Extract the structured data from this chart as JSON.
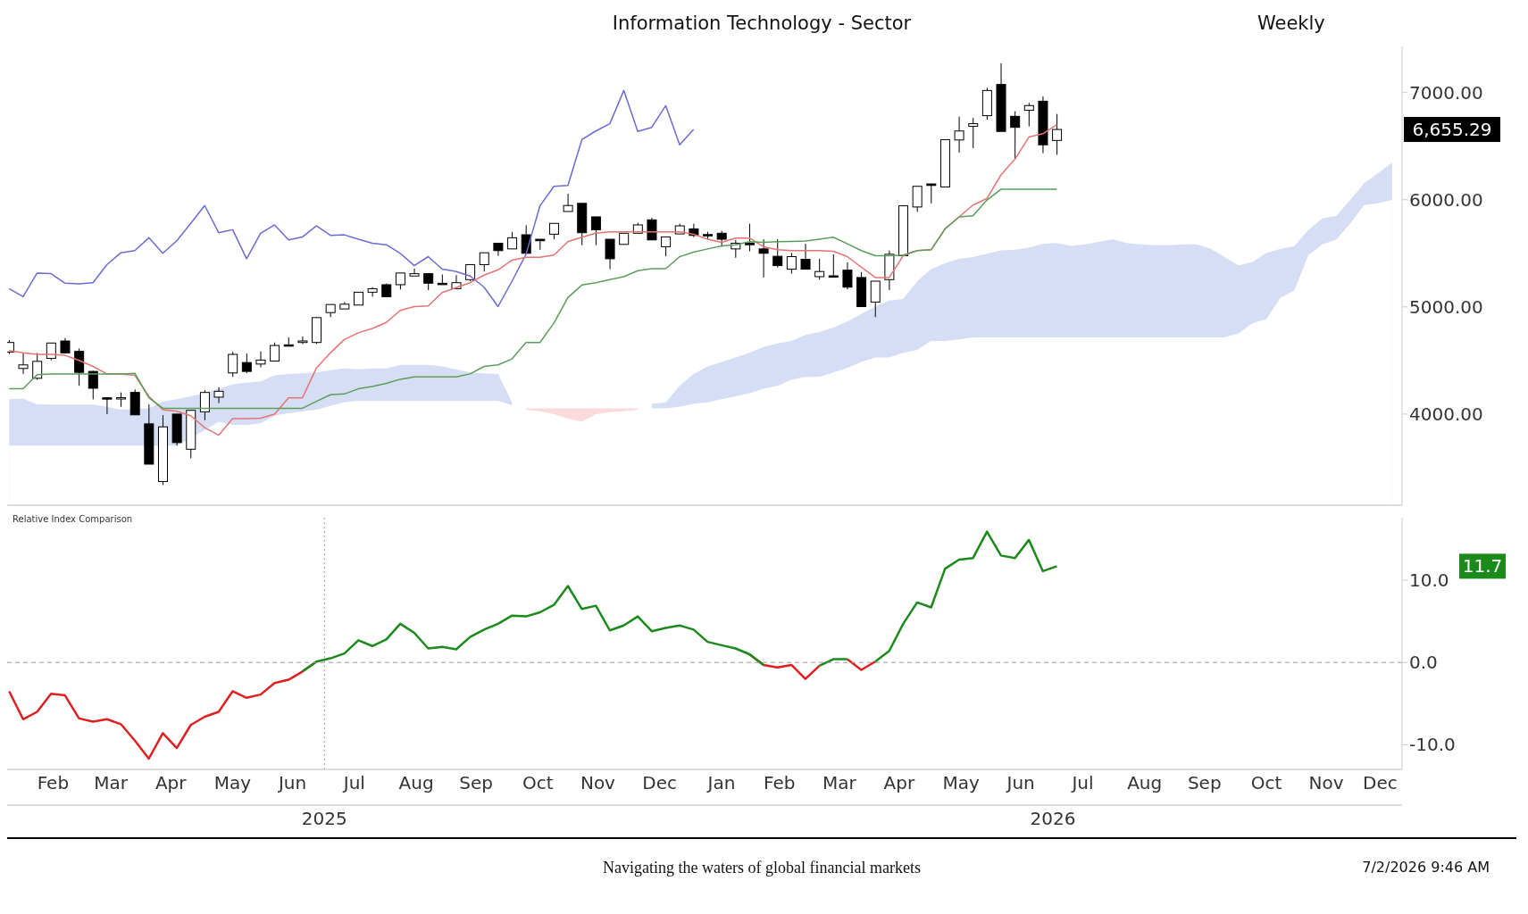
{
  "chart_data": [
    {
      "type": "candlestick",
      "title": "Information Technology - Sector",
      "subtitle": "Weekly",
      "x": [
        "2025-01-24",
        "2025-01-31",
        "2025-02-07",
        "2025-02-14",
        "2025-02-21",
        "2025-02-28",
        "2025-03-07",
        "2025-03-14",
        "2025-03-21",
        "2025-03-28",
        "2025-04-04",
        "2025-04-11",
        "2025-04-18",
        "2025-04-25",
        "2025-05-02",
        "2025-05-09",
        "2025-05-16",
        "2025-05-23",
        "2025-05-30",
        "2025-06-06",
        "2025-06-13",
        "2025-06-20",
        "2025-06-27",
        "2025-07-04",
        "2025-07-11",
        "2025-07-18",
        "2025-07-25",
        "2025-08-01",
        "2025-08-08",
        "2025-08-15",
        "2025-08-22",
        "2025-08-29",
        "2025-09-05",
        "2025-09-12",
        "2025-09-19",
        "2025-09-26",
        "2025-10-03",
        "2025-10-10",
        "2025-10-17",
        "2025-10-24",
        "2025-10-31",
        "2025-11-07",
        "2025-11-14",
        "2025-11-21",
        "2025-11-28",
        "2025-12-05",
        "2025-12-12",
        "2025-12-19",
        "2025-12-26",
        "2026-01-02",
        "2026-01-09",
        "2026-01-16",
        "2026-01-23",
        "2026-01-30",
        "2026-02-06",
        "2026-02-13",
        "2026-02-20",
        "2026-02-27",
        "2026-03-06",
        "2026-03-13",
        "2026-03-20",
        "2026-03-27",
        "2026-04-03",
        "2026-04-10",
        "2026-04-17",
        "2026-04-24",
        "2026-05-01",
        "2026-05-08",
        "2026-05-15",
        "2026-05-22",
        "2026-05-29",
        "2026-06-05",
        "2026-06-12",
        "2026-06-19",
        "2026-06-26",
        "2026-07-03"
      ],
      "ohlc": [
        [
          4579,
          4690,
          4560,
          4668
        ],
        [
          4426,
          4565,
          4375,
          4459
        ],
        [
          4334,
          4571,
          4319,
          4492
        ],
        [
          4520,
          4665,
          4501,
          4663
        ],
        [
          4682,
          4710,
          4571,
          4571
        ],
        [
          4585,
          4612,
          4264,
          4389
        ],
        [
          4398,
          4405,
          4138,
          4241
        ],
        [
          4152,
          4158,
          4000,
          4150
        ],
        [
          4150,
          4202,
          4068,
          4153
        ],
        [
          4202,
          4230,
          3993,
          3993
        ],
        [
          3909,
          4091,
          3533,
          3533
        ],
        [
          3371,
          3990,
          3338,
          3881
        ],
        [
          4000,
          4000,
          3706,
          3734
        ],
        [
          3672,
          4040,
          3588,
          4035
        ],
        [
          4021,
          4222,
          3943,
          4202
        ],
        [
          4158,
          4250,
          4102,
          4213
        ],
        [
          4384,
          4579,
          4347,
          4557
        ],
        [
          4481,
          4565,
          4381,
          4398
        ],
        [
          4467,
          4585,
          4437,
          4504
        ],
        [
          4495,
          4668,
          4495,
          4640
        ],
        [
          4646,
          4716,
          4633,
          4635
        ],
        [
          4668,
          4724,
          4654,
          4682
        ],
        [
          4668,
          4905,
          4654,
          4900
        ],
        [
          4947,
          5022,
          4905,
          5022
        ],
        [
          4981,
          5045,
          4981,
          5025
        ],
        [
          5017,
          5140,
          5017,
          5137
        ],
        [
          5137,
          5184,
          5095,
          5170
        ],
        [
          5207,
          5218,
          5095,
          5095
        ],
        [
          5207,
          5316,
          5162,
          5316
        ],
        [
          5288,
          5357,
          5288,
          5310
        ],
        [
          5310,
          5310,
          5157,
          5221
        ],
        [
          5220,
          5302,
          5212,
          5215
        ],
        [
          5170,
          5296,
          5170,
          5226
        ],
        [
          5254,
          5394,
          5240,
          5394
        ],
        [
          5394,
          5505,
          5330,
          5505
        ],
        [
          5594,
          5594,
          5477,
          5525
        ],
        [
          5541,
          5700,
          5541,
          5645
        ],
        [
          5673,
          5762,
          5500,
          5500
        ],
        [
          5631,
          5631,
          5533,
          5617
        ],
        [
          5678,
          5779,
          5631,
          5779
        ],
        [
          5890,
          6055,
          5890,
          5946
        ],
        [
          5966,
          5966,
          5575,
          5692
        ],
        [
          5840,
          5840,
          5575,
          5720
        ],
        [
          5631,
          5631,
          5352,
          5449
        ],
        [
          5583,
          5687,
          5583,
          5687
        ],
        [
          5687,
          5784,
          5687,
          5765
        ],
        [
          5812,
          5832,
          5625,
          5625
        ],
        [
          5561,
          5653,
          5472,
          5653
        ],
        [
          5681,
          5776,
          5681,
          5756
        ],
        [
          5728,
          5776,
          5650,
          5667
        ],
        [
          5675,
          5700,
          5631,
          5672
        ],
        [
          5687,
          5709,
          5561,
          5631
        ],
        [
          5541,
          5625,
          5458,
          5594
        ],
        [
          5594,
          5776,
          5519,
          5580
        ],
        [
          5541,
          5631,
          5274,
          5500
        ],
        [
          5472,
          5631,
          5366,
          5385
        ],
        [
          5352,
          5505,
          5310,
          5469
        ],
        [
          5444,
          5589,
          5352,
          5352
        ],
        [
          5282,
          5449,
          5254,
          5330
        ],
        [
          5290,
          5491,
          5274,
          5288
        ],
        [
          5343,
          5416,
          5162,
          5184
        ],
        [
          5274,
          5324,
          5003,
          5003
        ],
        [
          5045,
          5240,
          4905,
          5240
        ],
        [
          5254,
          5525,
          5157,
          5491
        ],
        [
          5477,
          5950,
          5477,
          5943
        ],
        [
          5932,
          6125,
          5887,
          6125
        ],
        [
          6147,
          6150,
          5966,
          6133
        ],
        [
          6119,
          6560,
          6119,
          6560
        ],
        [
          6557,
          6775,
          6440,
          6641
        ],
        [
          6684,
          6762,
          6481,
          6709
        ],
        [
          6784,
          7044,
          6747,
          7019
        ],
        [
          7075,
          7272,
          6637,
          6637
        ],
        [
          6778,
          6825,
          6372,
          6675
        ],
        [
          6834,
          6903,
          6684,
          6878
        ],
        [
          6919,
          6965,
          6434,
          6512
        ],
        [
          6553,
          6800,
          6419,
          6655.29
        ]
      ],
      "series": [
        {
          "type": "area",
          "color": "#d6def5",
          "x": [
            "2025-01-24",
            "2025-01-31",
            "2025-02-07",
            "2025-02-14",
            "2025-02-21",
            "2025-02-28",
            "2025-03-07",
            "2025-03-14",
            "2025-03-21",
            "2025-03-28",
            "2025-04-04",
            "2025-04-11",
            "2025-04-18",
            "2025-04-25",
            "2025-05-02",
            "2025-05-09",
            "2025-05-16",
            "2025-05-23",
            "2025-05-30",
            "2025-06-06",
            "2025-06-13",
            "2025-06-20",
            "2025-06-27",
            "2025-07-04",
            "2025-07-11",
            "2025-07-18",
            "2025-07-25",
            "2025-08-01",
            "2025-08-08",
            "2025-08-15",
            "2025-08-22",
            "2025-08-29",
            "2025-09-05",
            "2025-09-12",
            "2025-09-19",
            "2025-09-26",
            "2025-10-03"
          ],
          "values": [
            4138,
            4146,
            4091,
            4088,
            4088,
            4088,
            4088,
            4068,
            4041,
            null,
            4054,
            4119,
            4138,
            4166,
            4194,
            4236,
            4278,
            4292,
            4305,
            4361,
            4375,
            4381,
            4389,
            4409,
            4426,
            4417,
            4426,
            4426,
            4459,
            4459,
            4459,
            4445,
            4417,
            4389,
            4381,
            4375,
            4110
          ]
        },
        {
          "type": "area",
          "color": "#d6def5",
          "x": [
            "2025-12-12",
            "2025-12-19",
            "2025-12-26",
            "2026-01-02",
            "2026-01-09",
            "2026-01-16",
            "2026-01-23",
            "2026-01-30",
            "2026-02-06",
            "2026-02-13",
            "2026-02-20",
            "2026-02-27",
            "2026-03-06",
            "2026-03-13",
            "2026-03-20",
            "2026-03-27",
            "2026-04-03",
            "2026-04-10",
            "2026-04-17",
            "2026-04-24",
            "2026-05-01",
            "2026-05-08",
            "2026-05-15",
            "2026-05-22",
            "2026-05-29",
            "2026-06-05",
            "2026-06-12",
            "2026-06-19",
            "2026-06-26",
            "2026-07-03",
            "2026-07-10",
            "2026-07-17",
            "2026-07-24",
            "2026-07-31",
            "2026-08-07",
            "2026-08-14",
            "2026-08-21",
            "2026-08-28",
            "2026-09-04",
            "2026-09-11",
            "2026-09-18",
            "2026-09-25",
            "2026-10-02",
            "2026-10-09",
            "2026-10-16",
            "2026-10-23",
            "2026-10-30",
            "2026-11-06",
            "2026-11-13",
            "2026-11-20",
            "2026-11-27",
            "2026-12-04",
            "2026-12-11",
            "2026-12-18"
          ],
          "values": [
            4096,
            4110,
            4264,
            4375,
            4445,
            4487,
            4529,
            4571,
            4626,
            4660,
            4682,
            4738,
            4766,
            4808,
            4864,
            4933,
            5003,
            5059,
            5073,
            5240,
            5352,
            5408,
            5449,
            5465,
            5497,
            5528,
            5534,
            5553,
            5590,
            5597,
            5569,
            5584,
            5606,
            5631,
            5597,
            5584,
            5575,
            5575,
            5584,
            5584,
            5544,
            5465,
            5387,
            5419,
            5503,
            5541,
            5566,
            5716,
            5825,
            5847,
            5997,
            6153,
            6247,
            6347
          ]
        },
        {
          "type": "area",
          "color": "#fadada",
          "x": [
            "2025-10-10",
            "2025-10-17",
            "2025-10-24",
            "2025-10-31",
            "2025-11-07",
            "2025-11-14",
            "2025-11-21",
            "2025-11-28",
            "2025-12-05"
          ],
          "values": [
            4054,
            4054,
            4054,
            4054,
            4054,
            4054,
            4054,
            4054,
            4054
          ]
        },
        {
          "type": "area",
          "color": "#ffffff",
          "x": [
            "2025-01-24",
            "2025-01-31",
            "2025-02-07",
            "2025-02-14",
            "2025-02-21",
            "2025-02-28",
            "2025-03-07",
            "2025-03-14",
            "2025-03-21",
            "2025-03-28",
            "2025-04-04",
            "2025-04-11",
            "2025-04-18",
            "2025-04-25",
            "2025-05-02",
            "2025-05-09",
            "2025-05-16",
            "2025-05-23",
            "2025-05-30",
            "2025-06-06",
            "2025-06-13",
            "2025-06-20",
            "2025-06-27",
            "2025-07-04",
            "2025-07-11",
            "2025-07-18",
            "2025-07-25",
            "2025-08-01",
            "2025-08-08",
            "2025-08-15",
            "2025-08-22",
            "2025-08-29",
            "2025-09-05",
            "2025-09-12",
            "2025-09-19",
            "2025-09-26",
            "2025-10-03",
            "2025-10-10",
            "2025-10-17",
            "2025-10-24",
            "2025-10-31",
            "2025-11-07",
            "2025-11-14",
            "2025-11-21",
            "2025-11-28",
            "2025-12-05",
            "2025-12-12",
            "2025-12-19",
            "2025-12-26",
            "2026-01-02",
            "2026-01-09",
            "2026-01-16",
            "2026-01-23",
            "2026-01-30",
            "2026-02-06",
            "2026-02-13",
            "2026-02-20",
            "2026-02-27",
            "2026-03-06",
            "2026-03-13",
            "2026-03-20",
            "2026-03-27",
            "2026-04-03",
            "2026-04-10",
            "2026-04-17",
            "2026-04-24",
            "2026-05-01",
            "2026-05-08",
            "2026-05-15",
            "2026-05-22",
            "2026-05-29",
            "2026-06-05",
            "2026-06-12",
            "2026-06-19",
            "2026-06-26",
            "2026-07-03",
            "2026-07-10",
            "2026-07-17",
            "2026-07-24",
            "2026-07-31",
            "2026-08-07",
            "2026-08-14",
            "2026-08-21",
            "2026-08-28",
            "2026-09-04",
            "2026-09-11",
            "2026-09-18",
            "2026-09-25",
            "2026-10-02",
            "2026-10-09",
            "2026-10-16",
            "2026-10-23",
            "2026-10-30",
            "2026-11-06",
            "2026-11-13",
            "2026-11-20",
            "2026-11-27",
            "2026-12-04",
            "2026-12-11",
            "2026-12-18"
          ],
          "values": [
            3706,
            3706,
            3706,
            3706,
            3706,
            3706,
            3706,
            3706,
            3706,
            3706,
            null,
            null,
            3706,
            null,
            3850,
            3929,
            3900,
            3900,
            3914,
            3985,
            4007,
            4027,
            4041,
            4077,
            4110,
            4124,
            4124,
            4124,
            4124,
            4124,
            4124,
            4124,
            4124,
            4124,
            4124,
            4124,
            4082,
            4041,
            4027,
            3999,
            3957,
            3929,
            3999,
            4018,
            4027,
            4041,
            4054,
            4054,
            4068,
            4096,
            4110,
            4138,
            4166,
            4194,
            4236,
            4264,
            4319,
            4347,
            4347,
            4389,
            4431,
            4487,
            4529,
            4529,
            4571,
            4599,
            4682,
            4682,
            4696,
            4716,
            4716,
            4716,
            4716,
            4716,
            4716,
            4716,
            4716,
            4716,
            4716,
            4716,
            4716,
            4716,
            4716,
            4716,
            4716,
            4716,
            4716,
            4716,
            4753,
            4847,
            4887,
            5084,
            5153,
            5481,
            5584,
            5628,
            5778,
            5950,
            5966,
            5997
          ]
        },
        {
          "type": "line",
          "color": "#6b6bd6",
          "x": [
            "2025-01-24",
            "2025-01-31",
            "2025-02-07",
            "2025-02-14",
            "2025-02-21",
            "2025-02-28",
            "2025-03-07",
            "2025-03-14",
            "2025-03-21",
            "2025-03-28",
            "2025-04-04",
            "2025-04-11",
            "2025-04-18",
            "2025-04-25",
            "2025-05-02",
            "2025-05-09",
            "2025-05-16",
            "2025-05-23",
            "2025-05-30",
            "2025-06-06",
            "2025-06-13",
            "2025-06-20",
            "2025-06-27",
            "2025-07-04",
            "2025-07-11",
            "2025-07-18",
            "2025-07-25",
            "2025-08-01",
            "2025-08-08",
            "2025-08-15",
            "2025-08-22",
            "2025-08-29",
            "2025-09-05",
            "2025-09-12",
            "2025-09-19",
            "2025-09-26",
            "2025-10-03",
            "2025-10-10",
            "2025-10-17",
            "2025-10-24",
            "2025-10-31",
            "2025-11-07",
            "2025-11-14",
            "2025-11-21",
            "2025-11-28",
            "2025-12-05",
            "2025-12-12",
            "2025-12-19",
            "2025-12-26",
            "2026-01-02"
          ],
          "values": [
            5170,
            5095,
            5316,
            5310,
            5221,
            5215,
            5226,
            5394,
            5505,
            5525,
            5645,
            5500,
            5617,
            5779,
            5946,
            5692,
            5720,
            5449,
            5687,
            5765,
            5625,
            5653,
            5756,
            5667,
            5672,
            5631,
            5594,
            5580,
            5500,
            5385,
            5469,
            5352,
            5330,
            5288,
            5184,
            5003,
            5240,
            5491,
            5943,
            6125,
            6133,
            6560,
            6641,
            6709,
            7019,
            6637,
            6675,
            6878,
            6512,
            6655.29
          ]
        },
        {
          "type": "line",
          "color": "#e57373",
          "values": [
            4593,
            4571,
            4557,
            4557,
            4548,
            4501,
            4445,
            4375,
            4375,
            4361,
            4166,
            4041,
            4027,
            3985,
            3873,
            3803,
            3957,
            3957,
            3962,
            3999,
            4152,
            4152,
            4431,
            4571,
            4696,
            4758,
            4799,
            4855,
            4967,
            5003,
            5009,
            5134,
            5179,
            5226,
            5296,
            5346,
            5436,
            5463,
            5463,
            5483,
            5608,
            5650,
            5687,
            5701,
            5701,
            5701,
            5701,
            5701,
            5701,
            5678,
            5631,
            5603,
            5642,
            5642,
            5561,
            5533,
            5525,
            5525,
            5525,
            5519,
            5469,
            5371,
            5274,
            5274,
            5477,
            5525,
            5533,
            5728,
            5840,
            5950,
            6012,
            6231,
            6378,
            6584,
            6616,
            6700
          ]
        },
        {
          "type": "line",
          "color": "#5a9e5a",
          "values": [
            4236,
            4236,
            4367,
            4375,
            4375,
            4375,
            4375,
            4375,
            4375,
            4381,
            4152,
            4054,
            4054,
            4054,
            4054,
            4054,
            4054,
            4054,
            4054,
            4054,
            4054,
            4054,
            4119,
            4180,
            4188,
            4236,
            4258,
            4286,
            4325,
            4347,
            4347,
            4347,
            4347,
            4375,
            4445,
            4459,
            4515,
            4668,
            4668,
            4850,
            5087,
            5204,
            5226,
            5254,
            5282,
            5338,
            5357,
            5357,
            5469,
            5511,
            5541,
            5569,
            5580,
            5608,
            5603,
            5608,
            5611,
            5614,
            5631,
            5650,
            5589,
            5525,
            5477,
            5477,
            5483,
            5525,
            5533,
            5728,
            5840,
            5850,
            5997,
            6097,
            6097,
            6097,
            6097,
            6097
          ]
        }
      ],
      "xlim": [
        "2025-01-23",
        "2026-12-23"
      ],
      "ylim": [
        3150,
        7430
      ],
      "yticks": [
        {
          "value": 4000,
          "label": "4000.00"
        },
        {
          "value": 5000,
          "label": "5000.00"
        },
        {
          "value": 6000,
          "label": "6000.00"
        },
        {
          "value": 7000,
          "label": "7000.00"
        }
      ],
      "tick_labels": "y",
      "annotations": [
        "6,655.29"
      ]
    },
    {
      "type": "line",
      "title": "Relative Index Comparison",
      "x": [
        "2025-01-24",
        "2025-01-31",
        "2025-02-07",
        "2025-02-14",
        "2025-02-21",
        "2025-02-28",
        "2025-03-07",
        "2025-03-14",
        "2025-03-21",
        "2025-03-28",
        "2025-04-04",
        "2025-04-11",
        "2025-04-18",
        "2025-04-25",
        "2025-05-02",
        "2025-05-09",
        "2025-05-16",
        "2025-05-23",
        "2025-05-30",
        "2025-06-06",
        "2025-06-13",
        "2025-06-20",
        "2025-06-27",
        "2025-07-04",
        "2025-07-11",
        "2025-07-18",
        "2025-07-25",
        "2025-08-01",
        "2025-08-08",
        "2025-08-15",
        "2025-08-22",
        "2025-08-29",
        "2025-09-05",
        "2025-09-12",
        "2025-09-19",
        "2025-09-26",
        "2025-10-03",
        "2025-10-10",
        "2025-10-17",
        "2025-10-24",
        "2025-10-31",
        "2025-11-07",
        "2025-11-14",
        "2025-11-21",
        "2025-11-28",
        "2025-12-05",
        "2025-12-12",
        "2025-12-19",
        "2025-12-26",
        "2026-01-02",
        "2026-01-09",
        "2026-01-16",
        "2026-01-23",
        "2026-01-30",
        "2026-02-06",
        "2026-02-13",
        "2026-02-20",
        "2026-02-27",
        "2026-03-06",
        "2026-03-13",
        "2026-03-20",
        "2026-03-27",
        "2026-04-03",
        "2026-04-10",
        "2026-04-17",
        "2026-04-24",
        "2026-05-01",
        "2026-05-08",
        "2026-05-15",
        "2026-05-22",
        "2026-05-29",
        "2026-06-05",
        "2026-06-12",
        "2026-06-19",
        "2026-06-26",
        "2026-07-03"
      ],
      "series": [
        {
          "color": "#e02020",
          "values": [
            -3.5,
            -6.9,
            -6.0,
            -3.8,
            -4.0,
            -6.8,
            -7.2,
            -6.9,
            -7.5,
            -9.5,
            -11.7,
            -8.6,
            -10.4,
            -7.6,
            -6.6,
            -6.0,
            -3.5,
            -4.3,
            -3.9,
            -2.5,
            -2.1,
            -1.1,
            0.1,
            null,
            null,
            null,
            null,
            null,
            null,
            null,
            null,
            null,
            null,
            null,
            null,
            null,
            null,
            null,
            null,
            null,
            null,
            null,
            null,
            null,
            null,
            null,
            null,
            null,
            null,
            null,
            null,
            null,
            null,
            1.0,
            -0.3,
            -0.6,
            -0.3,
            -2.0,
            -0.4,
            null,
            0.4,
            -0.9,
            0.1,
            null,
            null,
            null,
            null,
            null,
            null,
            null,
            null,
            null,
            null,
            null,
            null,
            null
          ]
        },
        {
          "color": "#1a8a1a",
          "values": [
            null,
            null,
            null,
            null,
            null,
            null,
            null,
            null,
            null,
            null,
            null,
            null,
            null,
            null,
            null,
            null,
            null,
            null,
            null,
            null,
            null,
            -1.1,
            0.1,
            0.5,
            1.1,
            2.7,
            2.0,
            2.8,
            4.7,
            3.6,
            1.7,
            1.9,
            1.6,
            3.1,
            4.0,
            4.7,
            5.7,
            5.6,
            6.1,
            7.0,
            9.3,
            6.5,
            6.9,
            3.9,
            4.5,
            5.6,
            3.8,
            4.2,
            4.5,
            4.0,
            2.5,
            2.1,
            1.7,
            1.0,
            -0.3,
            null,
            null,
            null,
            -0.4,
            0.4,
            0.4,
            null,
            0.1,
            1.4,
            4.7,
            7.3,
            6.7,
            11.4,
            12.5,
            12.7,
            15.9,
            13.0,
            12.7,
            14.9,
            11.1,
            11.7
          ]
        }
      ],
      "xlim": [
        "2025-01-23",
        "2026-12-23"
      ],
      "ylim": [
        -13,
        17.6
      ],
      "xticks": [
        {
          "value": "2025-02-15",
          "label": "Feb"
        },
        {
          "value": "2025-03-16",
          "label": "Mar"
        },
        {
          "value": "2025-04-15",
          "label": "Apr"
        },
        {
          "value": "2025-05-16",
          "label": "May"
        },
        {
          "value": "2025-06-15",
          "label": "Jun"
        },
        {
          "value": "2025-07-16",
          "label": "Jul"
        },
        {
          "value": "2025-08-16",
          "label": "Aug"
        },
        {
          "value": "2025-09-15",
          "label": "Sep"
        },
        {
          "value": "2025-10-16",
          "label": "Oct"
        },
        {
          "value": "2025-11-15",
          "label": "Nov"
        },
        {
          "value": "2025-12-16",
          "label": "Dec"
        },
        {
          "value": "2026-01-16",
          "label": "Jan"
        },
        {
          "value": "2026-02-14",
          "label": "Feb"
        },
        {
          "value": "2026-03-16",
          "label": "Mar"
        },
        {
          "value": "2026-04-15",
          "label": "Apr"
        },
        {
          "value": "2026-05-16",
          "label": "May"
        },
        {
          "value": "2026-06-15",
          "label": "Jun"
        },
        {
          "value": "2026-07-16",
          "label": "Jul"
        },
        {
          "value": "2026-08-16",
          "label": "Aug"
        },
        {
          "value": "2026-09-15",
          "label": "Sep"
        },
        {
          "value": "2026-10-16",
          "label": "Oct"
        },
        {
          "value": "2026-11-15",
          "label": "Nov"
        },
        {
          "value": "2026-12-12",
          "label": "Dec"
        }
      ],
      "yticks": [
        {
          "value": -10,
          "label": "-10.0"
        },
        {
          "value": 0,
          "label": "0.0"
        },
        {
          "value": 10,
          "label": "10.0"
        }
      ],
      "ref_lines": [
        {
          "axis": "y",
          "value": 0,
          "color": "#999999",
          "line_style": "dashed"
        },
        {
          "axis": "x",
          "value": "2025-07-01",
          "color": "#999999",
          "line_style": "dotted"
        }
      ],
      "x2lim": [
        "2025-01-23",
        "2026-12-23"
      ],
      "x2ticks": [
        {
          "value": "2025-07-01",
          "label": "2025"
        },
        {
          "value": "2026-07-01",
          "label": "2026"
        }
      ],
      "annotations": [
        "11.7"
      ]
    },
    {
      "type": "other",
      "annotations": [
        "Navigating the waters of global financial markets",
        "7/2/2026 9:46 AM"
      ]
    }
  ]
}
